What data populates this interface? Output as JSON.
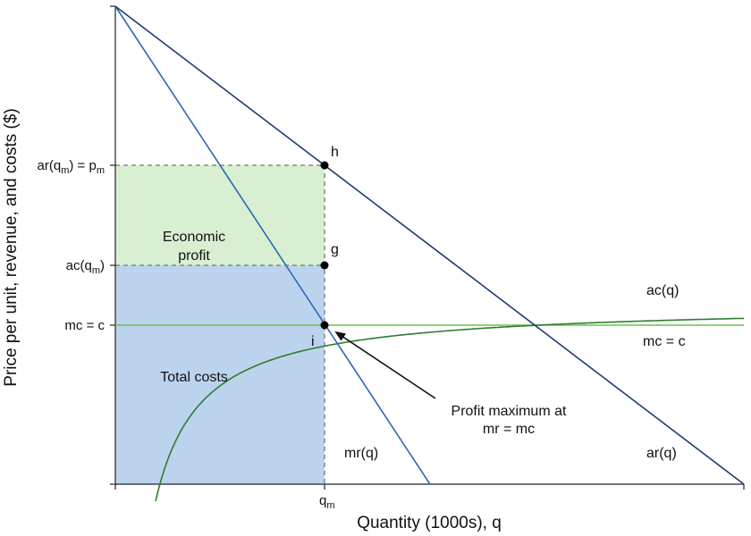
{
  "chart_data": {
    "type": "line",
    "title": "",
    "xlabel": "Quantity (1000s), q",
    "ylabel": "Price per unit, revenue, and costs ($)",
    "colors": {
      "ar": "#1f3b73",
      "mr": "#2a6bb5",
      "ac": "#2e7d32",
      "mc": "#6cc24a",
      "profit_fill": "#d8efd1",
      "cost_fill": "#bcd3ee",
      "guide": "#888888"
    },
    "y_ticks": {
      "ar_qm": {
        "base": "ar(q",
        "sub": "m",
        "suffix": ") = p",
        "sub2": "m"
      },
      "ac_qm": {
        "base": "ac(q",
        "sub": "m",
        "suffix": ")"
      },
      "mc": {
        "text": "mc = c"
      }
    },
    "x_ticks": {
      "qm": {
        "base": "q",
        "sub": "m"
      }
    },
    "series": [
      {
        "name": "ar(q)",
        "label": "ar(q)"
      },
      {
        "name": "mr(q)",
        "label": "mr(q)"
      },
      {
        "name": "ac(q)",
        "label": "ac(q)"
      },
      {
        "name": "mc = c",
        "label": "mc = c"
      }
    ],
    "points": {
      "h": "h",
      "g": "g",
      "i": "i"
    },
    "regions": {
      "profit_line1": "Economic",
      "profit_line2": "profit",
      "costs": "Total costs"
    },
    "annotation": {
      "line1": "Profit maximum at",
      "line2": "mr = mc"
    }
  }
}
